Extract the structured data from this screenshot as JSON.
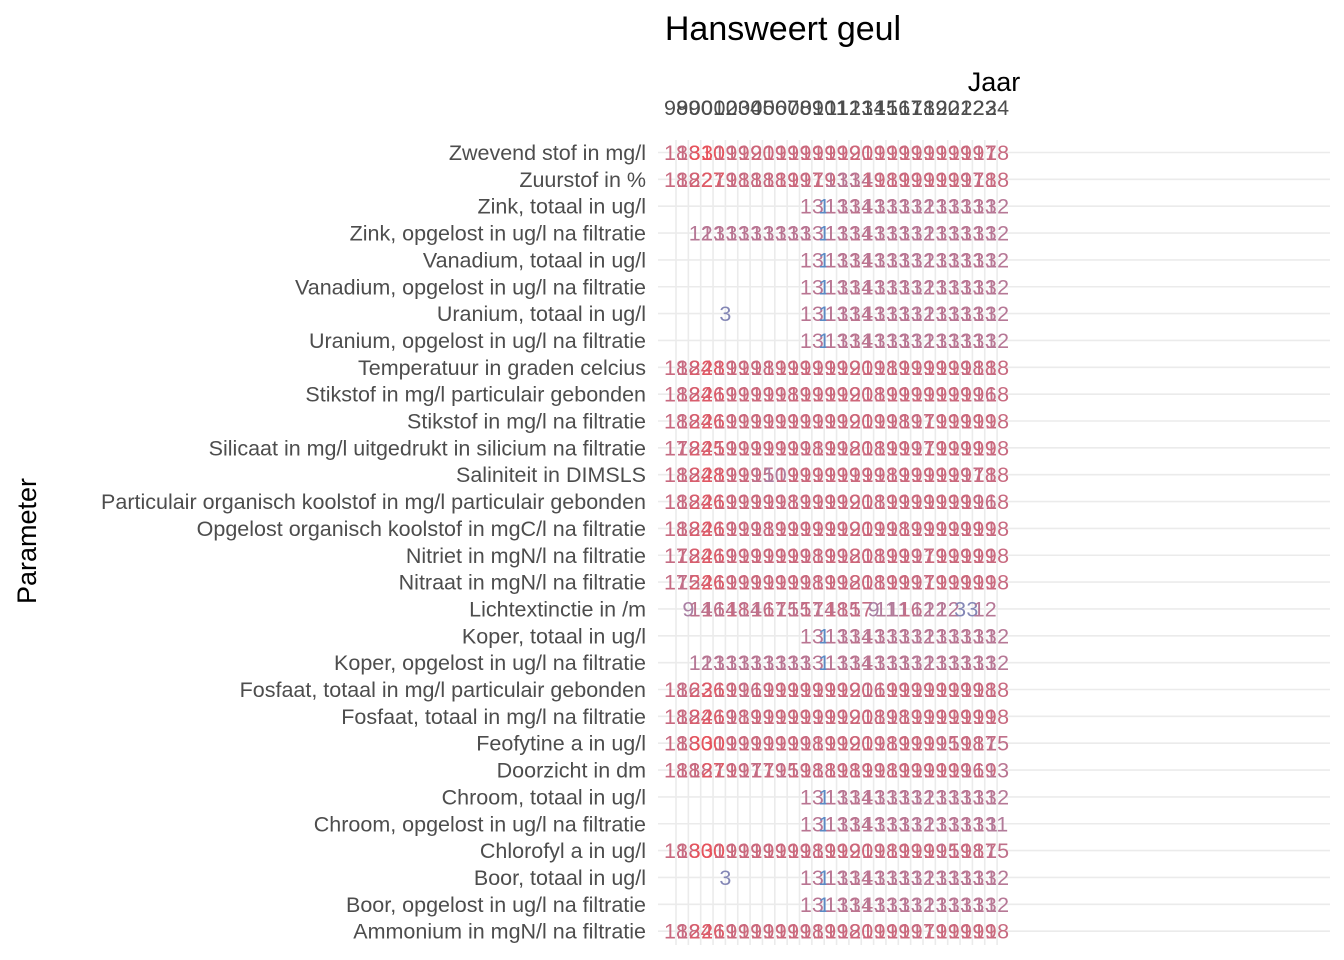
{
  "chart_data": {
    "type": "table",
    "title": "Hansweert geul",
    "xlabel": "Jaar",
    "ylabel": "Parameter",
    "x_position": "top",
    "grid": true,
    "legend": "none",
    "color_low": "#5b8ac4",
    "color_mid": "#a882a6",
    "color_high": "#e8525a",
    "years": [
      "98",
      "99",
      "00",
      "01",
      "02",
      "03",
      "04",
      "05",
      "06",
      "07",
      "08",
      "09",
      "10",
      "11",
      "12",
      "13",
      "14",
      "15",
      "16",
      "17",
      "18",
      "19",
      "20",
      "21",
      "22",
      "23",
      "24"
    ],
    "parameters": [
      "Zwevend stof in mg/l",
      "Zuurstof in %",
      "Zink, totaal in ug/l",
      "Zink, opgelost in ug/l na filtratie",
      "Vanadium, totaal in ug/l",
      "Vanadium, opgelost in ug/l na filtratie",
      "Uranium, totaal in ug/l",
      "Uranium, opgelost in ug/l na filtratie",
      "Temperatuur in graden celcius",
      "Stikstof in mg/l particulair gebonden",
      "Stikstof in mg/l na filtratie",
      "Silicaat in mg/l uitgedrukt in silicium na filtratie",
      "Saliniteit in DIMSLS",
      "Particulair organisch koolstof in mg/l particulair gebonden",
      "Opgelost organisch koolstof in mgC/l na filtratie",
      "Nitriet in mgN/l na filtratie",
      "Nitraat in mgN/l na filtratie",
      "Lichtextinctie in /m",
      "Koper, totaal in ug/l",
      "Koper, opgelost in ug/l na filtratie",
      "Fosfaat, totaal in mg/l particulair gebonden",
      "Fosfaat, totaal in mg/l na filtratie",
      "Feofytine a in ug/l",
      "Doorzicht in dm",
      "Chroom, totaal in ug/l",
      "Chroom, opgelost in ug/l na filtratie",
      "Chlorofyl a in ug/l",
      "Boor, totaal in ug/l",
      "Boor, opgelost in ug/l na filtratie",
      "Ammonium in mgN/l na filtratie"
    ],
    "counts": [
      [
        18,
        18,
        31,
        30,
        19,
        19,
        19,
        20,
        19,
        19,
        19,
        19,
        19,
        19,
        19,
        20,
        19,
        19,
        19,
        19,
        19,
        19,
        19,
        19,
        19,
        17,
        18
      ],
      [
        18,
        18,
        22,
        27,
        19,
        18,
        18,
        18,
        18,
        19,
        19,
        17,
        19,
        13,
        13,
        14,
        19,
        18,
        19,
        19,
        19,
        19,
        19,
        19,
        17,
        18,
        18
      ],
      [
        null,
        null,
        null,
        null,
        null,
        null,
        null,
        null,
        null,
        null,
        null,
        13,
        1,
        13,
        13,
        14,
        13,
        13,
        13,
        13,
        12,
        13,
        13,
        13,
        13,
        13,
        12
      ],
      [
        null,
        null,
        12,
        13,
        13,
        13,
        13,
        13,
        13,
        13,
        13,
        13,
        1,
        13,
        13,
        14,
        13,
        13,
        13,
        13,
        12,
        13,
        13,
        13,
        13,
        13,
        12
      ],
      [
        null,
        null,
        null,
        null,
        null,
        null,
        null,
        null,
        null,
        null,
        null,
        13,
        1,
        13,
        13,
        14,
        13,
        13,
        13,
        13,
        12,
        13,
        13,
        13,
        13,
        13,
        12
      ],
      [
        null,
        null,
        null,
        null,
        null,
        null,
        null,
        null,
        null,
        null,
        null,
        13,
        1,
        13,
        13,
        14,
        13,
        13,
        13,
        13,
        12,
        13,
        13,
        13,
        13,
        13,
        12
      ],
      [
        null,
        null,
        null,
        null,
        3,
        null,
        null,
        null,
        null,
        null,
        null,
        13,
        1,
        13,
        13,
        14,
        13,
        13,
        13,
        13,
        12,
        13,
        13,
        13,
        13,
        13,
        12
      ],
      [
        null,
        null,
        null,
        null,
        null,
        null,
        null,
        null,
        null,
        null,
        null,
        13,
        1,
        13,
        13,
        14,
        13,
        13,
        13,
        13,
        12,
        13,
        13,
        13,
        13,
        13,
        12
      ],
      [
        18,
        18,
        24,
        28,
        19,
        19,
        19,
        18,
        19,
        19,
        19,
        19,
        19,
        19,
        19,
        20,
        19,
        18,
        19,
        19,
        19,
        19,
        19,
        19,
        18,
        18,
        18
      ],
      [
        18,
        18,
        24,
        26,
        19,
        19,
        19,
        19,
        19,
        18,
        19,
        19,
        19,
        19,
        19,
        20,
        18,
        19,
        19,
        19,
        19,
        19,
        19,
        19,
        19,
        16,
        18
      ],
      [
        18,
        18,
        24,
        26,
        19,
        19,
        19,
        19,
        19,
        19,
        19,
        19,
        19,
        19,
        19,
        20,
        19,
        19,
        18,
        19,
        17,
        19,
        19,
        19,
        19,
        19,
        18
      ],
      [
        17,
        18,
        24,
        25,
        19,
        19,
        19,
        19,
        19,
        19,
        19,
        18,
        19,
        19,
        18,
        20,
        18,
        19,
        19,
        19,
        17,
        19,
        19,
        19,
        19,
        19,
        18
      ],
      [
        18,
        18,
        24,
        28,
        19,
        19,
        19,
        15,
        10,
        19,
        19,
        19,
        19,
        19,
        19,
        19,
        19,
        18,
        19,
        19,
        19,
        19,
        19,
        19,
        17,
        18,
        18
      ],
      [
        18,
        18,
        24,
        26,
        19,
        19,
        19,
        19,
        19,
        18,
        19,
        19,
        19,
        19,
        19,
        20,
        18,
        19,
        19,
        19,
        19,
        19,
        19,
        19,
        19,
        16,
        18
      ],
      [
        18,
        18,
        24,
        26,
        19,
        19,
        19,
        18,
        19,
        19,
        19,
        19,
        19,
        19,
        19,
        20,
        19,
        19,
        18,
        19,
        19,
        19,
        19,
        19,
        19,
        19,
        18
      ],
      [
        17,
        18,
        24,
        26,
        19,
        19,
        19,
        19,
        19,
        19,
        19,
        18,
        19,
        19,
        18,
        20,
        18,
        19,
        19,
        19,
        17,
        19,
        19,
        19,
        19,
        19,
        18
      ],
      [
        17,
        15,
        24,
        26,
        19,
        19,
        19,
        19,
        19,
        19,
        19,
        18,
        19,
        19,
        18,
        20,
        18,
        19,
        19,
        19,
        17,
        19,
        19,
        19,
        19,
        19,
        18
      ],
      [
        null,
        9,
        14,
        16,
        14,
        18,
        14,
        16,
        17,
        15,
        15,
        17,
        14,
        18,
        15,
        17,
        9,
        11,
        11,
        16,
        12,
        12,
        12,
        3,
        3,
        12,
        null
      ],
      [
        null,
        null,
        null,
        null,
        null,
        null,
        null,
        null,
        null,
        null,
        null,
        13,
        1,
        13,
        13,
        14,
        13,
        13,
        13,
        13,
        12,
        13,
        13,
        13,
        13,
        13,
        12
      ],
      [
        null,
        null,
        12,
        13,
        13,
        13,
        13,
        13,
        13,
        13,
        13,
        13,
        1,
        13,
        13,
        14,
        13,
        13,
        13,
        13,
        12,
        13,
        13,
        13,
        13,
        13,
        12
      ],
      [
        18,
        16,
        23,
        26,
        19,
        19,
        16,
        19,
        19,
        19,
        19,
        19,
        19,
        19,
        19,
        20,
        16,
        19,
        19,
        19,
        19,
        19,
        19,
        19,
        19,
        18,
        18
      ],
      [
        18,
        18,
        24,
        26,
        19,
        18,
        19,
        19,
        19,
        19,
        19,
        19,
        19,
        19,
        19,
        20,
        18,
        19,
        18,
        19,
        19,
        19,
        19,
        19,
        19,
        19,
        18
      ],
      [
        18,
        18,
        30,
        30,
        19,
        19,
        19,
        19,
        19,
        19,
        19,
        18,
        19,
        19,
        19,
        20,
        19,
        18,
        19,
        19,
        19,
        19,
        15,
        19,
        18,
        17,
        15
      ],
      [
        18,
        18,
        18,
        27,
        19,
        19,
        17,
        17,
        19,
        15,
        19,
        18,
        18,
        19,
        18,
        19,
        19,
        18,
        19,
        19,
        19,
        19,
        19,
        19,
        16,
        19,
        13
      ],
      [
        null,
        null,
        null,
        null,
        null,
        null,
        null,
        null,
        null,
        null,
        null,
        13,
        1,
        13,
        13,
        14,
        13,
        13,
        13,
        13,
        12,
        13,
        13,
        13,
        13,
        13,
        12
      ],
      [
        null,
        null,
        null,
        null,
        null,
        null,
        null,
        null,
        null,
        null,
        null,
        13,
        1,
        13,
        13,
        14,
        13,
        13,
        13,
        13,
        12,
        13,
        13,
        13,
        13,
        13,
        11
      ],
      [
        18,
        18,
        30,
        30,
        19,
        19,
        19,
        19,
        19,
        19,
        19,
        18,
        19,
        19,
        19,
        20,
        19,
        18,
        19,
        19,
        19,
        19,
        15,
        19,
        18,
        17,
        15
      ],
      [
        null,
        null,
        null,
        null,
        3,
        null,
        null,
        null,
        null,
        null,
        null,
        13,
        1,
        13,
        13,
        14,
        13,
        13,
        13,
        13,
        12,
        13,
        13,
        13,
        13,
        13,
        12
      ],
      [
        null,
        null,
        null,
        null,
        null,
        null,
        null,
        null,
        null,
        null,
        null,
        13,
        1,
        13,
        13,
        14,
        13,
        13,
        13,
        13,
        12,
        13,
        13,
        13,
        13,
        13,
        12
      ],
      [
        18,
        18,
        24,
        26,
        19,
        19,
        19,
        19,
        19,
        19,
        19,
        18,
        19,
        19,
        18,
        20,
        19,
        19,
        19,
        19,
        17,
        19,
        19,
        19,
        19,
        19,
        18
      ]
    ]
  }
}
